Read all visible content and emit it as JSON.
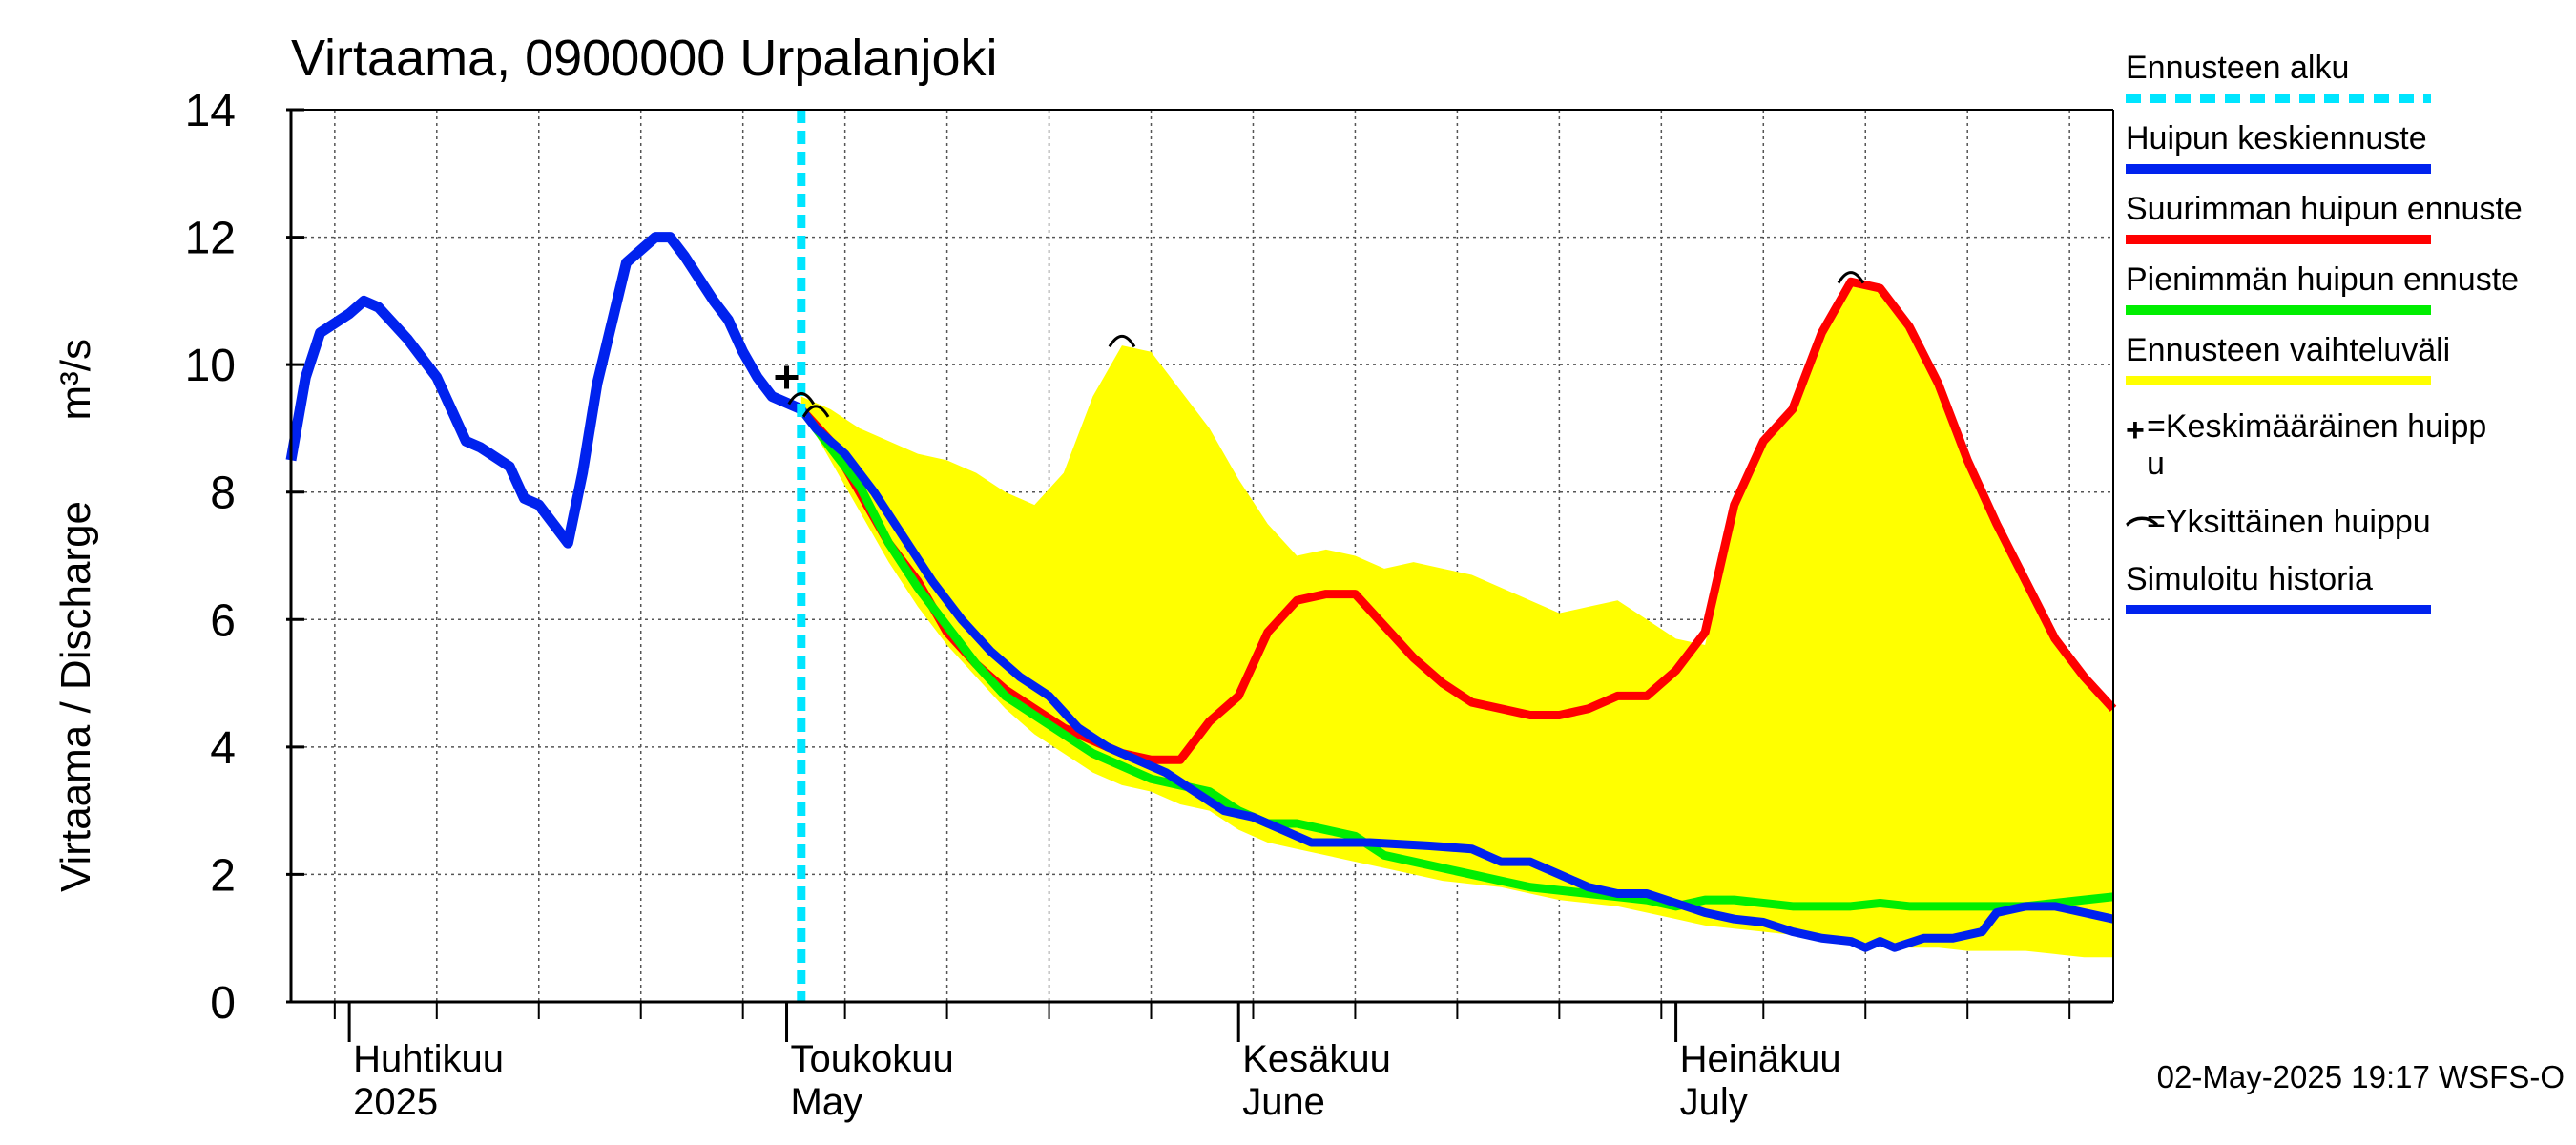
{
  "chart_data": {
    "type": "line",
    "title": "Virtaama, 0900000 Urpalanjoki",
    "ylabel": "Virtaama / Discharge",
    "yunit": "m³/s",
    "ylim": [
      0,
      14
    ],
    "yticks": [
      0,
      2,
      4,
      6,
      8,
      10,
      12,
      14
    ],
    "grid": true,
    "x_range": [
      "2025-03-28",
      "2025-07-31"
    ],
    "month_labels": [
      {
        "fi": "Huhtikuu",
        "en": "2025",
        "date": "2025-04-01"
      },
      {
        "fi": "Toukokuu",
        "en": "May",
        "date": "2025-05-01"
      },
      {
        "fi": "Kesäkuu",
        "en": "June",
        "date": "2025-06-01"
      },
      {
        "fi": "Heinäkuu",
        "en": "July",
        "date": "2025-07-01"
      }
    ],
    "forecast_start": "2025-05-02",
    "colors": {
      "forecast_start": "#00e5ff",
      "mean_peak": "#0022ee",
      "max_peak": "#ff0000",
      "min_peak": "#00ee00",
      "range": "#ffff00",
      "history": "#0022ee"
    },
    "series": {
      "history": [
        [
          "2025-03-28",
          8.5
        ],
        [
          "2025-03-29",
          9.8
        ],
        [
          "2025-03-30",
          10.5
        ],
        [
          "2025-04-01",
          10.8
        ],
        [
          "2025-04-02",
          11.0
        ],
        [
          "2025-04-03",
          10.9
        ],
        [
          "2025-04-05",
          10.4
        ],
        [
          "2025-04-07",
          9.8
        ],
        [
          "2025-04-09",
          8.8
        ],
        [
          "2025-04-10",
          8.7
        ],
        [
          "2025-04-12",
          8.4
        ],
        [
          "2025-04-13",
          7.9
        ],
        [
          "2025-04-14",
          7.8
        ],
        [
          "2025-04-16",
          7.2
        ],
        [
          "2025-04-17",
          8.3
        ],
        [
          "2025-04-18",
          9.7
        ],
        [
          "2025-04-20",
          11.6
        ],
        [
          "2025-04-21",
          11.8
        ],
        [
          "2025-04-22",
          12.0
        ],
        [
          "2025-04-23",
          12.0
        ],
        [
          "2025-04-24",
          11.7
        ],
        [
          "2025-04-26",
          11.0
        ],
        [
          "2025-04-27",
          10.7
        ],
        [
          "2025-04-28",
          10.2
        ],
        [
          "2025-04-29",
          9.8
        ],
        [
          "2025-04-30",
          9.5
        ],
        [
          "2025-05-01",
          9.4
        ],
        [
          "2025-05-02",
          9.3
        ]
      ],
      "mean_peak": [
        [
          "2025-05-02",
          9.3
        ],
        [
          "2025-05-03",
          9.0
        ],
        [
          "2025-05-05",
          8.6
        ],
        [
          "2025-05-07",
          8.0
        ],
        [
          "2025-05-09",
          7.3
        ],
        [
          "2025-05-11",
          6.6
        ],
        [
          "2025-05-13",
          6.0
        ],
        [
          "2025-05-15",
          5.5
        ],
        [
          "2025-05-17",
          5.1
        ],
        [
          "2025-05-19",
          4.8
        ],
        [
          "2025-05-21",
          4.3
        ],
        [
          "2025-05-23",
          4.0
        ],
        [
          "2025-05-25",
          3.8
        ],
        [
          "2025-05-27",
          3.6
        ],
        [
          "2025-05-29",
          3.3
        ],
        [
          "2025-05-31",
          3.0
        ],
        [
          "2025-06-02",
          2.9
        ],
        [
          "2025-06-04",
          2.7
        ],
        [
          "2025-06-06",
          2.5
        ],
        [
          "2025-06-10",
          2.5
        ],
        [
          "2025-06-14",
          2.45
        ],
        [
          "2025-06-17",
          2.4
        ],
        [
          "2025-06-19",
          2.2
        ],
        [
          "2025-06-21",
          2.2
        ],
        [
          "2025-06-23",
          2.0
        ],
        [
          "2025-06-25",
          1.8
        ],
        [
          "2025-06-27",
          1.7
        ],
        [
          "2025-06-29",
          1.7
        ],
        [
          "2025-07-01",
          1.55
        ],
        [
          "2025-07-03",
          1.4
        ],
        [
          "2025-07-05",
          1.3
        ],
        [
          "2025-07-07",
          1.25
        ],
        [
          "2025-07-09",
          1.1
        ],
        [
          "2025-07-11",
          1.0
        ],
        [
          "2025-07-13",
          0.95
        ],
        [
          "2025-07-14",
          0.85
        ],
        [
          "2025-07-15",
          0.95
        ],
        [
          "2025-07-16",
          0.85
        ],
        [
          "2025-07-18",
          1.0
        ],
        [
          "2025-07-20",
          1.0
        ],
        [
          "2025-07-22",
          1.1
        ],
        [
          "2025-07-23",
          1.4
        ],
        [
          "2025-07-25",
          1.5
        ],
        [
          "2025-07-27",
          1.5
        ],
        [
          "2025-07-29",
          1.4
        ],
        [
          "2025-07-31",
          1.3
        ]
      ],
      "max_peak": [
        [
          "2025-05-02",
          9.3
        ],
        [
          "2025-05-04",
          8.8
        ],
        [
          "2025-05-06",
          8.0
        ],
        [
          "2025-05-08",
          7.2
        ],
        [
          "2025-05-10",
          6.6
        ],
        [
          "2025-05-12",
          5.8
        ],
        [
          "2025-05-14",
          5.3
        ],
        [
          "2025-05-16",
          4.9
        ],
        [
          "2025-05-18",
          4.6
        ],
        [
          "2025-05-20",
          4.3
        ],
        [
          "2025-05-22",
          4.1
        ],
        [
          "2025-05-24",
          3.9
        ],
        [
          "2025-05-26",
          3.8
        ],
        [
          "2025-05-28",
          3.8
        ],
        [
          "2025-05-30",
          4.4
        ],
        [
          "2025-06-01",
          4.8
        ],
        [
          "2025-06-03",
          5.8
        ],
        [
          "2025-06-05",
          6.3
        ],
        [
          "2025-06-07",
          6.4
        ],
        [
          "2025-06-09",
          6.4
        ],
        [
          "2025-06-11",
          5.9
        ],
        [
          "2025-06-13",
          5.4
        ],
        [
          "2025-06-15",
          5.0
        ],
        [
          "2025-06-17",
          4.7
        ],
        [
          "2025-06-19",
          4.6
        ],
        [
          "2025-06-21",
          4.5
        ],
        [
          "2025-06-23",
          4.5
        ],
        [
          "2025-06-25",
          4.6
        ],
        [
          "2025-06-27",
          4.8
        ],
        [
          "2025-06-29",
          4.8
        ],
        [
          "2025-07-01",
          5.2
        ],
        [
          "2025-07-03",
          5.8
        ],
        [
          "2025-07-05",
          7.8
        ],
        [
          "2025-07-07",
          8.8
        ],
        [
          "2025-07-09",
          9.3
        ],
        [
          "2025-07-11",
          10.5
        ],
        [
          "2025-07-13",
          11.3
        ],
        [
          "2025-07-15",
          11.2
        ],
        [
          "2025-07-17",
          10.6
        ],
        [
          "2025-07-19",
          9.7
        ],
        [
          "2025-07-21",
          8.5
        ],
        [
          "2025-07-23",
          7.5
        ],
        [
          "2025-07-25",
          6.6
        ],
        [
          "2025-07-27",
          5.7
        ],
        [
          "2025-07-29",
          5.1
        ],
        [
          "2025-07-31",
          4.6
        ]
      ],
      "min_peak": [
        [
          "2025-05-02",
          9.3
        ],
        [
          "2025-05-04",
          8.7
        ],
        [
          "2025-05-06",
          8.1
        ],
        [
          "2025-05-08",
          7.2
        ],
        [
          "2025-05-10",
          6.5
        ],
        [
          "2025-05-12",
          5.9
        ],
        [
          "2025-05-14",
          5.3
        ],
        [
          "2025-05-16",
          4.8
        ],
        [
          "2025-05-18",
          4.5
        ],
        [
          "2025-05-20",
          4.2
        ],
        [
          "2025-05-22",
          3.9
        ],
        [
          "2025-05-24",
          3.7
        ],
        [
          "2025-05-26",
          3.5
        ],
        [
          "2025-05-28",
          3.4
        ],
        [
          "2025-05-30",
          3.3
        ],
        [
          "2025-06-01",
          3.0
        ],
        [
          "2025-06-03",
          2.8
        ],
        [
          "2025-06-05",
          2.8
        ],
        [
          "2025-06-07",
          2.7
        ],
        [
          "2025-06-09",
          2.6
        ],
        [
          "2025-06-11",
          2.3
        ],
        [
          "2025-06-13",
          2.2
        ],
        [
          "2025-06-15",
          2.1
        ],
        [
          "2025-06-17",
          2.0
        ],
        [
          "2025-06-19",
          1.9
        ],
        [
          "2025-06-21",
          1.8
        ],
        [
          "2025-06-23",
          1.75
        ],
        [
          "2025-06-25",
          1.7
        ],
        [
          "2025-06-27",
          1.65
        ],
        [
          "2025-06-29",
          1.6
        ],
        [
          "2025-07-01",
          1.5
        ],
        [
          "2025-07-03",
          1.6
        ],
        [
          "2025-07-05",
          1.6
        ],
        [
          "2025-07-07",
          1.55
        ],
        [
          "2025-07-09",
          1.5
        ],
        [
          "2025-07-11",
          1.5
        ],
        [
          "2025-07-13",
          1.5
        ],
        [
          "2025-07-15",
          1.55
        ],
        [
          "2025-07-17",
          1.5
        ],
        [
          "2025-07-19",
          1.5
        ],
        [
          "2025-07-21",
          1.5
        ],
        [
          "2025-07-23",
          1.5
        ],
        [
          "2025-07-25",
          1.5
        ],
        [
          "2025-07-27",
          1.55
        ],
        [
          "2025-07-29",
          1.6
        ],
        [
          "2025-07-31",
          1.65
        ]
      ],
      "range_upper": [
        [
          "2025-05-02",
          9.5
        ],
        [
          "2025-05-04",
          9.3
        ],
        [
          "2025-05-06",
          9.0
        ],
        [
          "2025-05-08",
          8.8
        ],
        [
          "2025-05-10",
          8.6
        ],
        [
          "2025-05-12",
          8.5
        ],
        [
          "2025-05-14",
          8.3
        ],
        [
          "2025-05-16",
          8.0
        ],
        [
          "2025-05-18",
          7.8
        ],
        [
          "2025-05-20",
          8.3
        ],
        [
          "2025-05-22",
          9.5
        ],
        [
          "2025-05-24",
          10.3
        ],
        [
          "2025-05-26",
          10.2
        ],
        [
          "2025-05-28",
          9.6
        ],
        [
          "2025-05-30",
          9.0
        ],
        [
          "2025-06-01",
          8.2
        ],
        [
          "2025-06-03",
          7.5
        ],
        [
          "2025-06-05",
          7.0
        ],
        [
          "2025-06-07",
          7.1
        ],
        [
          "2025-06-09",
          7.0
        ],
        [
          "2025-06-11",
          6.8
        ],
        [
          "2025-06-13",
          6.9
        ],
        [
          "2025-06-15",
          6.8
        ],
        [
          "2025-06-17",
          6.7
        ],
        [
          "2025-06-19",
          6.5
        ],
        [
          "2025-06-21",
          6.3
        ],
        [
          "2025-06-23",
          6.1
        ],
        [
          "2025-06-25",
          6.2
        ],
        [
          "2025-06-27",
          6.3
        ],
        [
          "2025-06-29",
          6.0
        ],
        [
          "2025-07-01",
          5.7
        ],
        [
          "2025-07-03",
          5.6
        ],
        [
          "2025-07-05",
          7.8
        ],
        [
          "2025-07-07",
          8.8
        ],
        [
          "2025-07-09",
          9.3
        ],
        [
          "2025-07-11",
          10.5
        ],
        [
          "2025-07-13",
          11.3
        ],
        [
          "2025-07-15",
          11.2
        ],
        [
          "2025-07-17",
          10.6
        ],
        [
          "2025-07-19",
          9.7
        ],
        [
          "2025-07-21",
          8.5
        ],
        [
          "2025-07-23",
          7.5
        ],
        [
          "2025-07-25",
          6.6
        ],
        [
          "2025-07-27",
          5.7
        ],
        [
          "2025-07-29",
          5.1
        ],
        [
          "2025-07-31",
          4.6
        ]
      ],
      "range_lower": [
        [
          "2025-05-02",
          9.3
        ],
        [
          "2025-05-04",
          8.5
        ],
        [
          "2025-05-06",
          7.7
        ],
        [
          "2025-05-08",
          6.9
        ],
        [
          "2025-05-10",
          6.2
        ],
        [
          "2025-05-12",
          5.6
        ],
        [
          "2025-05-14",
          5.1
        ],
        [
          "2025-05-16",
          4.6
        ],
        [
          "2025-05-18",
          4.2
        ],
        [
          "2025-05-20",
          3.9
        ],
        [
          "2025-05-22",
          3.6
        ],
        [
          "2025-05-24",
          3.4
        ],
        [
          "2025-05-26",
          3.3
        ],
        [
          "2025-05-28",
          3.1
        ],
        [
          "2025-05-30",
          3.0
        ],
        [
          "2025-06-01",
          2.7
        ],
        [
          "2025-06-03",
          2.5
        ],
        [
          "2025-06-05",
          2.4
        ],
        [
          "2025-06-07",
          2.3
        ],
        [
          "2025-06-09",
          2.2
        ],
        [
          "2025-06-11",
          2.1
        ],
        [
          "2025-06-13",
          2.0
        ],
        [
          "2025-06-15",
          1.9
        ],
        [
          "2025-06-17",
          1.85
        ],
        [
          "2025-06-19",
          1.8
        ],
        [
          "2025-06-21",
          1.7
        ],
        [
          "2025-06-23",
          1.6
        ],
        [
          "2025-06-25",
          1.55
        ],
        [
          "2025-06-27",
          1.5
        ],
        [
          "2025-06-29",
          1.4
        ],
        [
          "2025-07-01",
          1.3
        ],
        [
          "2025-07-03",
          1.2
        ],
        [
          "2025-07-05",
          1.15
        ],
        [
          "2025-07-07",
          1.1
        ],
        [
          "2025-07-09",
          1.05
        ],
        [
          "2025-07-11",
          1.0
        ],
        [
          "2025-07-13",
          0.95
        ],
        [
          "2025-07-15",
          0.9
        ],
        [
          "2025-07-17",
          0.85
        ],
        [
          "2025-07-19",
          0.85
        ],
        [
          "2025-07-21",
          0.8
        ],
        [
          "2025-07-23",
          0.8
        ],
        [
          "2025-07-25",
          0.8
        ],
        [
          "2025-07-27",
          0.75
        ],
        [
          "2025-07-29",
          0.7
        ],
        [
          "2025-07-31",
          0.7
        ]
      ]
    },
    "peaks": {
      "mean_peak_marker": [
        "2025-05-01",
        9.8
      ],
      "single_peaks": [
        [
          "2025-05-02",
          9.5
        ],
        [
          "2025-05-03",
          9.3
        ],
        [
          "2025-05-24",
          10.4
        ],
        [
          "2025-07-13",
          11.4
        ]
      ]
    }
  },
  "legend": [
    {
      "label": "Ennusteen alku",
      "key": "forecast_start",
      "style": "dashed"
    },
    {
      "label": "Huipun keskiennuste",
      "key": "mean_peak",
      "style": "solid"
    },
    {
      "label": "Suurimman huipun ennuste",
      "key": "max_peak",
      "style": "solid"
    },
    {
      "label": "Pienimmän huipun ennuste",
      "key": "min_peak",
      "style": "solid"
    },
    {
      "label": "Ennusteen vaihteluväli",
      "key": "range",
      "style": "solid"
    },
    {
      "label": "=Keskimääräinen huipp",
      "label2": "u",
      "key": "mean_marker",
      "style": "plus"
    },
    {
      "label": "=Yksittäinen huippu",
      "key": "single_marker",
      "style": "arc"
    },
    {
      "label": "Simuloitu historia",
      "key": "history",
      "style": "solid"
    }
  ],
  "footer": "02-May-2025 19:17 WSFS-O"
}
